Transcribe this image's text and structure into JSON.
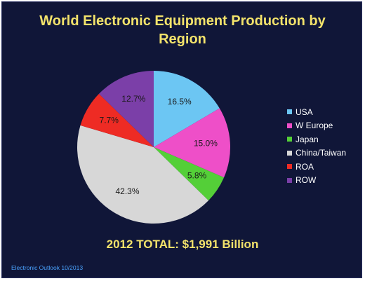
{
  "title_lines": [
    "World Electronic Equipment Production by",
    "Region"
  ],
  "total_label": "2012 TOTAL: $1,991 Billion",
  "source": "Electronic Outlook 10/2013",
  "colors": {
    "background": "#101638",
    "title": "#f3e36b",
    "source": "#4aa3ff"
  },
  "chart_data": {
    "type": "pie",
    "title": "World Electronic Equipment Production by Region",
    "legend_position": "right",
    "slices": [
      {
        "label": "USA",
        "value": 16.5,
        "display": "16.5%",
        "color": "#6cc6f3"
      },
      {
        "label": "W Europe",
        "value": 15.0,
        "display": "15.0%",
        "color": "#ee4fc8"
      },
      {
        "label": "Japan",
        "value": 5.8,
        "display": "5.8%",
        "color": "#54cf38"
      },
      {
        "label": "China/Taiwan",
        "value": 42.3,
        "display": "42.3%",
        "color": "#d7d7d7"
      },
      {
        "label": "ROA",
        "value": 7.7,
        "display": "7.7%",
        "color": "#ee2b24"
      },
      {
        "label": "ROW",
        "value": 12.7,
        "display": "12.7%",
        "color": "#7b3fa8"
      }
    ]
  }
}
